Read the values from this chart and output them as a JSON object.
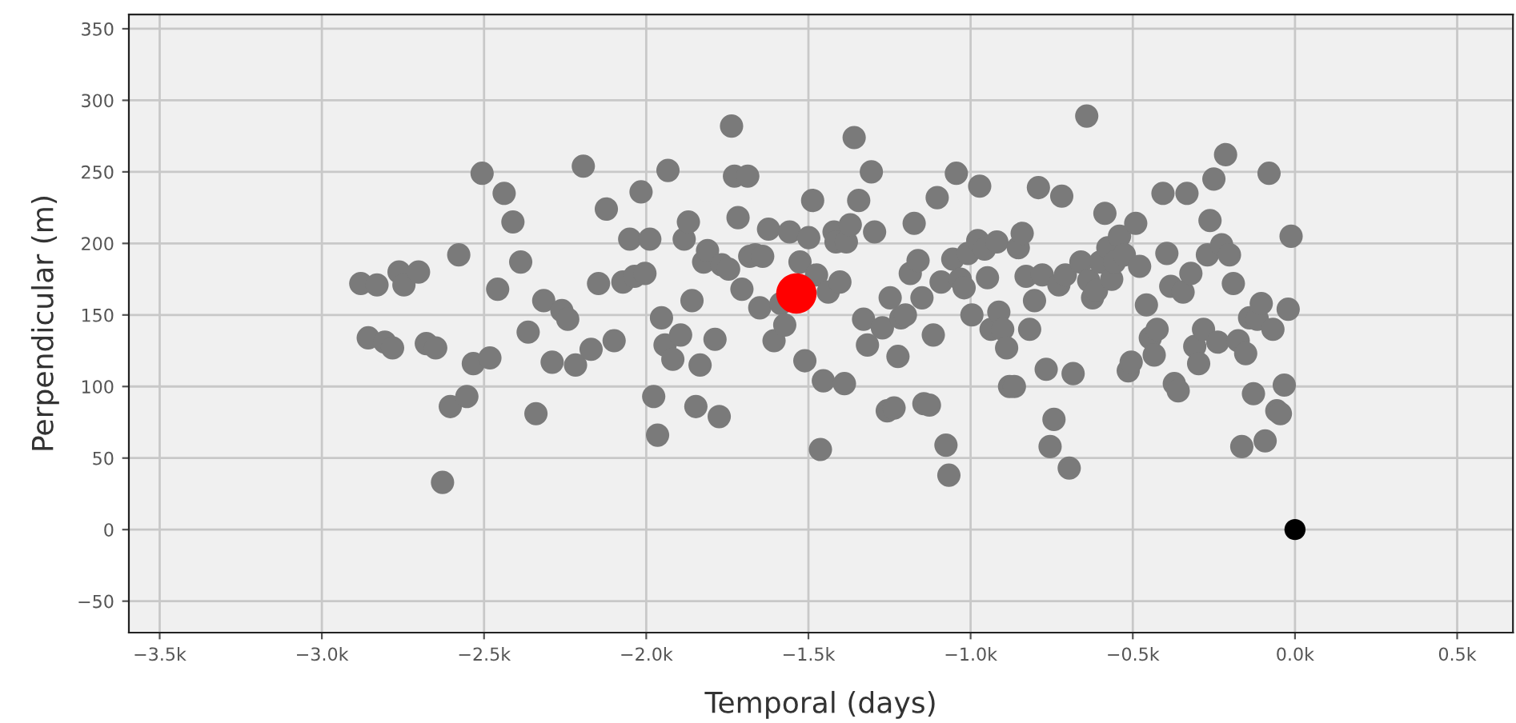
{
  "chart_data": {
    "type": "scatter",
    "xlabel": "Temporal (days)",
    "ylabel": "Perpendicular (m)",
    "xlim": [
      -3595,
      672
    ],
    "ylim": [
      -72,
      360
    ],
    "xticks": [
      {
        "value": -3500,
        "label": "−3.5k"
      },
      {
        "value": -3000,
        "label": "−3.0k"
      },
      {
        "value": -2500,
        "label": "−2.5k"
      },
      {
        "value": -2000,
        "label": "−2.0k"
      },
      {
        "value": -1500,
        "label": "−1.5k"
      },
      {
        "value": -1000,
        "label": "−1.0k"
      },
      {
        "value": -500,
        "label": "−0.5k"
      },
      {
        "value": 0,
        "label": "0.0k"
      },
      {
        "value": 500,
        "label": "0.5k"
      }
    ],
    "yticks": [
      {
        "value": -50,
        "label": "−50"
      },
      0,
      50,
      100,
      150,
      200,
      250,
      300,
      350
    ],
    "grid": true,
    "marker": "circle",
    "series": [
      {
        "color": "#7a7a7a",
        "x": [
          -2880,
          -2857,
          -2830,
          -2806,
          -2782,
          -2762,
          -2747,
          -2702,
          -2678,
          -2649,
          -2628,
          -2604,
          -2578,
          -2553,
          -2533,
          -2506,
          -2482,
          -2458,
          -2438,
          -2411,
          -2387,
          -2364,
          -2340,
          -2316,
          -2260,
          -2242,
          -2290,
          -2218,
          -2194,
          -2170,
          -2147,
          -2123,
          -2099,
          -2072,
          -2051,
          -2036,
          -2004,
          -2016,
          -1989,
          -1977,
          -1965,
          -1953,
          -1942,
          -1933,
          -1918,
          -1894,
          -1883,
          -1870,
          -1859,
          -1847,
          -1834,
          -1823,
          -1811,
          -1788,
          -1775,
          -1767,
          -1746,
          -1737,
          -1728,
          -1717,
          -1705,
          -1687,
          -1681,
          -1664,
          -1641,
          -1650,
          -1623,
          -1606,
          -1585,
          -1573,
          -1558,
          -1526,
          -1511,
          -1499,
          -1487,
          -1475,
          -1463,
          -1454,
          -1439,
          -1421,
          -1415,
          -1403,
          -1389,
          -1383,
          -1371,
          -1359,
          -1345,
          -1330,
          -1318,
          -1306,
          -1296,
          -1272,
          -1257,
          -1248,
          -1236,
          -1224,
          -1215,
          -1201,
          -1186,
          -1174,
          -1162,
          -1150,
          -1144,
          -1127,
          -1115,
          -1103,
          -1091,
          -1076,
          -1067,
          -1055,
          -1044,
          -1032,
          -1020,
          -1008,
          -996,
          -978,
          -972,
          -957,
          -948,
          -937,
          -919,
          -913,
          -901,
          -889,
          -880,
          -865,
          -853,
          -841,
          -829,
          -818,
          -803,
          -791,
          -779,
          -767,
          -755,
          -743,
          -728,
          -719,
          -696,
          -684,
          -708,
          -660,
          -642,
          -636,
          -624,
          -612,
          -600,
          -586,
          -577,
          -565,
          -556,
          -541,
          -526,
          -514,
          -505,
          -491,
          -479,
          -458,
          -446,
          -434,
          -425,
          -407,
          -395,
          -383,
          -372,
          -360,
          -345,
          -333,
          -321,
          -309,
          -297,
          -282,
          -270,
          -262,
          -250,
          -238,
          -226,
          -214,
          -202,
          -190,
          -175,
          -164,
          -152,
          -140,
          -128,
          -116,
          -104,
          -92,
          -80,
          -68,
          -56,
          -45,
          -33,
          -21,
          -12
        ],
        "values": [
          172,
          134,
          171,
          131,
          127,
          180,
          171,
          180,
          130,
          127,
          33,
          86,
          192,
          93,
          116,
          249,
          120,
          168,
          235,
          215,
          187,
          138,
          81,
          160,
          153,
          147,
          117,
          115,
          254,
          126,
          172,
          224,
          132,
          173,
          203,
          177,
          179,
          236,
          203,
          93,
          66,
          148,
          129,
          251,
          119,
          136,
          203,
          215,
          160,
          86,
          115,
          187,
          195,
          133,
          79,
          185,
          182,
          282,
          247,
          218,
          168,
          247,
          191,
          192,
          191,
          155,
          210,
          132,
          158,
          143,
          208,
          187,
          118,
          204,
          230,
          178,
          56,
          104,
          166,
          208,
          201,
          173,
          102,
          201,
          213,
          274,
          230,
          147,
          129,
          250,
          208,
          141,
          83,
          162,
          85,
          121,
          148,
          150,
          179,
          214,
          188,
          162,
          88,
          87,
          136,
          232,
          173,
          59,
          38,
          189,
          249,
          175,
          169,
          193,
          150,
          202,
          240,
          196,
          176,
          140,
          201,
          152,
          140,
          127,
          100,
          100,
          197,
          207,
          177,
          140,
          160,
          239,
          178,
          112,
          58,
          77,
          171,
          233,
          43,
          109,
          178,
          187,
          289,
          174,
          162,
          167,
          187,
          221,
          197,
          175,
          187,
          205,
          192,
          111,
          117,
          214,
          184,
          157,
          134,
          122,
          140,
          235,
          193,
          170,
          102,
          97,
          166,
          235,
          179,
          128,
          116,
          140,
          192,
          216,
          245,
          131,
          199,
          262,
          192,
          172,
          132,
          58,
          123,
          148,
          95,
          147,
          158,
          62,
          249,
          140,
          83,
          81,
          101,
          154,
          205
        ]
      },
      {
        "color": "#ff0000",
        "x": [
          -1537
        ],
        "values": [
          165
        ]
      },
      {
        "color": "#000000",
        "x": [
          0
        ],
        "values": [
          0
        ]
      }
    ]
  }
}
